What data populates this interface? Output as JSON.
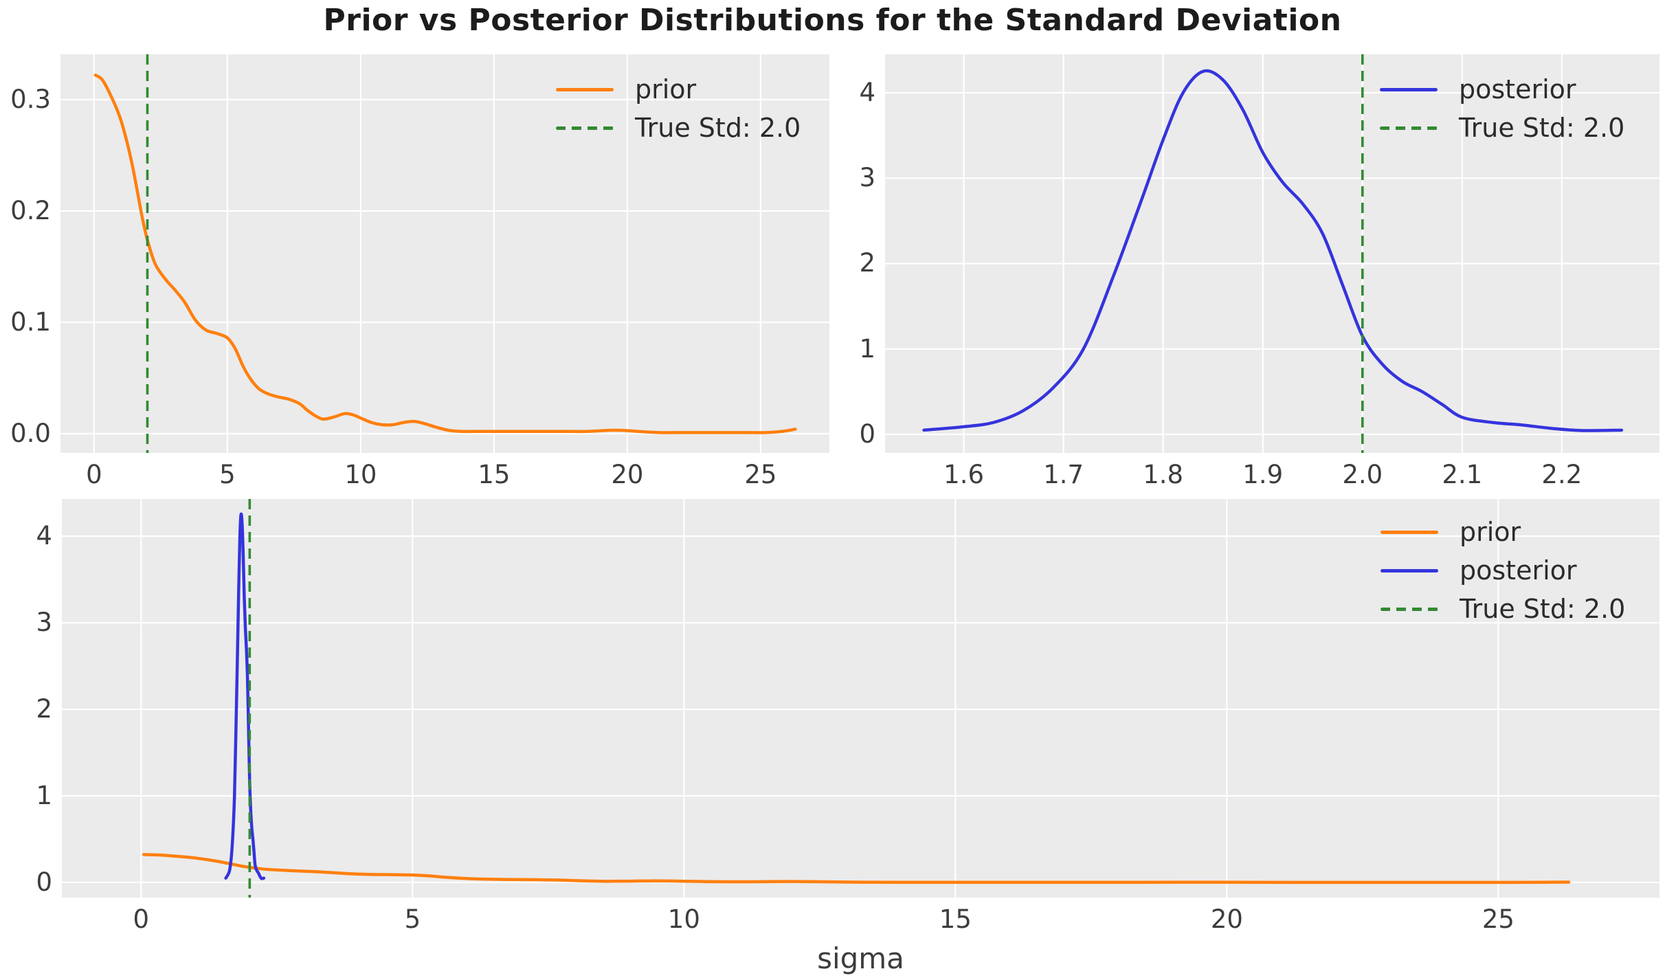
{
  "title": "Prior vs Posterior Distributions for the Standard Deviation",
  "xlabel": "sigma",
  "colors": {
    "prior": "#ff7f0e",
    "posterior": "#3434dd",
    "true_std": "#338a33",
    "plot_bg": "#ebebeb",
    "grid": "#ffffff",
    "tick_text": "#3d3d3d",
    "title_text": "#1c1c1c"
  },
  "legend_labels": {
    "prior": "prior",
    "posterior": "posterior",
    "true_std": "True Std: 2.0"
  },
  "series_data": {
    "prior": [
      [
        0.05,
        0.322
      ],
      [
        0.3,
        0.318
      ],
      [
        0.6,
        0.305
      ],
      [
        1.0,
        0.282
      ],
      [
        1.4,
        0.245
      ],
      [
        1.8,
        0.195
      ],
      [
        2.0,
        0.174
      ],
      [
        2.3,
        0.152
      ],
      [
        2.7,
        0.138
      ],
      [
        3.0,
        0.13
      ],
      [
        3.4,
        0.118
      ],
      [
        3.8,
        0.102
      ],
      [
        4.2,
        0.093
      ],
      [
        4.6,
        0.09
      ],
      [
        5.0,
        0.086
      ],
      [
        5.3,
        0.076
      ],
      [
        5.6,
        0.06
      ],
      [
        5.9,
        0.048
      ],
      [
        6.2,
        0.04
      ],
      [
        6.5,
        0.036
      ],
      [
        6.9,
        0.033
      ],
      [
        7.3,
        0.031
      ],
      [
        7.7,
        0.027
      ],
      [
        8.0,
        0.021
      ],
      [
        8.3,
        0.016
      ],
      [
        8.6,
        0.013
      ],
      [
        9.0,
        0.015
      ],
      [
        9.4,
        0.018
      ],
      [
        9.7,
        0.017
      ],
      [
        10.0,
        0.014
      ],
      [
        10.4,
        0.01
      ],
      [
        10.8,
        0.008
      ],
      [
        11.2,
        0.008
      ],
      [
        11.6,
        0.01
      ],
      [
        12.0,
        0.011
      ],
      [
        12.4,
        0.009
      ],
      [
        12.8,
        0.006
      ],
      [
        13.3,
        0.003
      ],
      [
        13.8,
        0.002
      ],
      [
        14.5,
        0.002
      ],
      [
        15.5,
        0.002
      ],
      [
        16.5,
        0.002
      ],
      [
        17.5,
        0.002
      ],
      [
        18.5,
        0.002
      ],
      [
        19.3,
        0.003
      ],
      [
        19.8,
        0.003
      ],
      [
        20.4,
        0.002
      ],
      [
        21.2,
        0.001
      ],
      [
        22.2,
        0.001
      ],
      [
        23.2,
        0.001
      ],
      [
        24.2,
        0.001
      ],
      [
        25.2,
        0.001
      ],
      [
        25.8,
        0.002
      ],
      [
        26.3,
        0.004
      ]
    ],
    "posterior": [
      [
        1.56,
        0.05
      ],
      [
        1.6,
        0.09
      ],
      [
        1.63,
        0.14
      ],
      [
        1.66,
        0.28
      ],
      [
        1.69,
        0.55
      ],
      [
        1.72,
        1.0
      ],
      [
        1.75,
        1.85
      ],
      [
        1.78,
        2.8
      ],
      [
        1.8,
        3.45
      ],
      [
        1.82,
        4.0
      ],
      [
        1.84,
        4.25
      ],
      [
        1.86,
        4.15
      ],
      [
        1.88,
        3.8
      ],
      [
        1.9,
        3.3
      ],
      [
        1.92,
        2.95
      ],
      [
        1.94,
        2.7
      ],
      [
        1.96,
        2.35
      ],
      [
        1.98,
        1.75
      ],
      [
        2.0,
        1.15
      ],
      [
        2.02,
        0.82
      ],
      [
        2.04,
        0.62
      ],
      [
        2.06,
        0.5
      ],
      [
        2.08,
        0.35
      ],
      [
        2.1,
        0.2
      ],
      [
        2.13,
        0.14
      ],
      [
        2.16,
        0.11
      ],
      [
        2.19,
        0.07
      ],
      [
        2.22,
        0.045
      ],
      [
        2.26,
        0.05
      ]
    ]
  },
  "chart_data": [
    {
      "id": "prior-chart",
      "type": "line",
      "series": [
        {
          "name": "prior",
          "data_key": "prior"
        }
      ],
      "vline": {
        "x": 2.0,
        "label": "True Std: 2.0"
      },
      "xlim": [
        -1.26,
        27.58
      ],
      "ylim": [
        -0.0173,
        0.3407
      ],
      "xticks": {
        "values": [
          0,
          5,
          10,
          15,
          20,
          25
        ],
        "labels": [
          "0",
          "5",
          "10",
          "15",
          "20",
          "25"
        ]
      },
      "yticks": {
        "values": [
          0,
          0.1,
          0.2,
          0.3
        ],
        "labels": [
          "0.0",
          "0.1",
          "0.2",
          "0.3"
        ]
      },
      "legend": [
        "prior",
        "true_std"
      ],
      "grid": true,
      "legend_position": "upper right"
    },
    {
      "id": "posterior-chart",
      "type": "line",
      "series": [
        {
          "name": "posterior",
          "data_key": "posterior"
        }
      ],
      "vline": {
        "x": 2.0,
        "label": "True Std: 2.0"
      },
      "xlim": [
        1.521,
        2.298
      ],
      "ylim": [
        -0.217,
        4.45
      ],
      "xticks": {
        "values": [
          1.6,
          1.7,
          1.8,
          1.9,
          2.0,
          2.1,
          2.2
        ],
        "labels": [
          "1.6",
          "1.7",
          "1.8",
          "1.9",
          "2.0",
          "2.1",
          "2.2"
        ]
      },
      "yticks": {
        "values": [
          0,
          1,
          2,
          3,
          4
        ],
        "labels": [
          "0",
          "1",
          "2",
          "3",
          "4"
        ]
      },
      "legend": [
        "posterior",
        "true_std"
      ],
      "grid": true,
      "legend_position": "upper right"
    },
    {
      "id": "combined-chart",
      "type": "line",
      "series": [
        {
          "name": "prior",
          "data_key": "prior"
        },
        {
          "name": "posterior",
          "data_key": "posterior"
        }
      ],
      "vline": {
        "x": 2.0,
        "label": "True Std: 2.0"
      },
      "xlim": [
        -1.46,
        27.97
      ],
      "ylim": [
        -0.175,
        4.43
      ],
      "xlabel": "sigma",
      "xticks": {
        "values": [
          0,
          5,
          10,
          15,
          20,
          25
        ],
        "labels": [
          "0",
          "5",
          "10",
          "15",
          "20",
          "25"
        ]
      },
      "yticks": {
        "values": [
          0,
          1,
          2,
          3,
          4
        ],
        "labels": [
          "0",
          "1",
          "2",
          "3",
          "4"
        ]
      },
      "legend": [
        "prior",
        "posterior",
        "true_std"
      ],
      "grid": true,
      "legend_position": "upper right"
    }
  ]
}
